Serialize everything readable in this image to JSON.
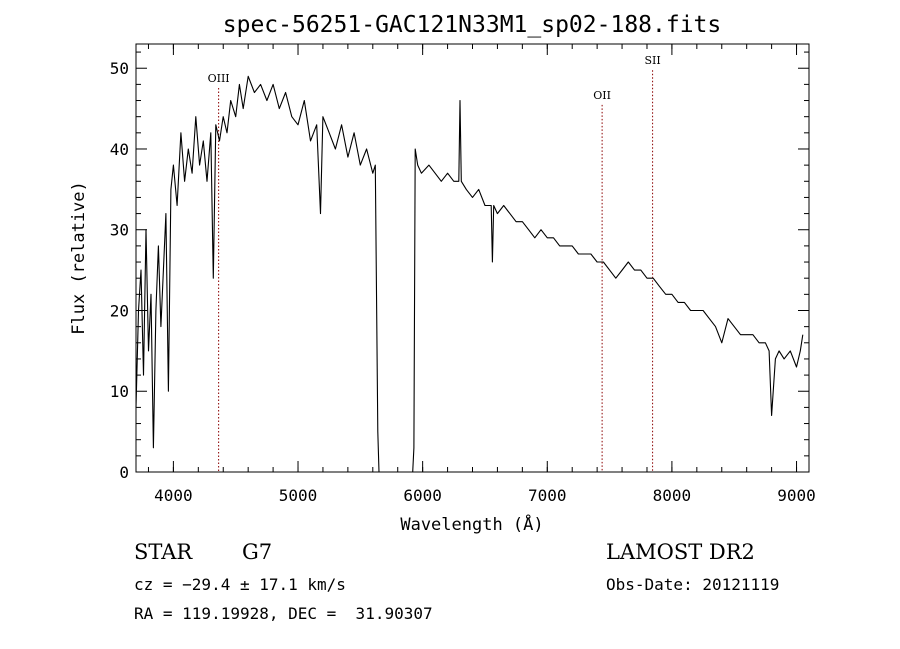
{
  "chart_data": {
    "type": "line",
    "title": "spec-56251-GAC121N33M1_sp02-188.fits",
    "xlabel": "Wavelength (Å)",
    "ylabel": "Flux (relative)",
    "xlim": [
      3700,
      9100
    ],
    "ylim": [
      0,
      53
    ],
    "xticks": [
      4000,
      5000,
      6000,
      7000,
      8000,
      9000
    ],
    "yticks": [
      0,
      10,
      20,
      30,
      40,
      50
    ],
    "xtick_labels": [
      "4000",
      "5000",
      "6000",
      "7000",
      "8000",
      "9000"
    ],
    "ytick_labels": [
      "0",
      "10",
      "20",
      "30",
      "40",
      "50"
    ],
    "grid": false,
    "line_color": "#000000",
    "marker_color": "#8b0000",
    "series": [
      {
        "x": [
          3700,
          3720,
          3740,
          3760,
          3780,
          3800,
          3820,
          3840,
          3860,
          3880,
          3900,
          3920,
          3940,
          3960,
          3980,
          4000,
          4030,
          4060,
          4090,
          4120,
          4150,
          4180,
          4210,
          4240,
          4270,
          4300,
          4320,
          4340,
          4370,
          4400,
          4430,
          4460,
          4500,
          4530,
          4560,
          4600,
          4650,
          4700,
          4750,
          4800,
          4850,
          4900,
          4950,
          5000,
          5050,
          5100,
          5150,
          5180,
          5200,
          5250,
          5300,
          5350,
          5400,
          5450,
          5500,
          5550,
          5600,
          5620,
          5640,
          5650,
          5660,
          5680,
          5700,
          5800,
          5900,
          5920,
          5930,
          5940,
          5960,
          5990,
          6050,
          6100,
          6150,
          6200,
          6250,
          6290,
          6300,
          6310,
          6350,
          6400,
          6450,
          6500,
          6550,
          6560,
          6570,
          6600,
          6650,
          6700,
          6750,
          6800,
          6850,
          6900,
          6950,
          7000,
          7050,
          7100,
          7150,
          7200,
          7250,
          7300,
          7350,
          7400,
          7450,
          7500,
          7550,
          7600,
          7650,
          7700,
          7750,
          7800,
          7850,
          7900,
          7950,
          8000,
          8050,
          8100,
          8150,
          8200,
          8250,
          8300,
          8350,
          8400,
          8450,
          8500,
          8550,
          8600,
          8650,
          8700,
          8750,
          8780,
          8800,
          8830,
          8860,
          8900,
          8950,
          9000,
          9030,
          9050
        ],
        "values": [
          8,
          20,
          25,
          12,
          30,
          15,
          22,
          3,
          20,
          28,
          18,
          25,
          32,
          10,
          35,
          38,
          33,
          42,
          36,
          40,
          37,
          44,
          38,
          41,
          36,
          42,
          24,
          43,
          41,
          44,
          42,
          46,
          44,
          48,
          45,
          49,
          47,
          48,
          46,
          48,
          45,
          47,
          44,
          43,
          46,
          41,
          43,
          32,
          44,
          42,
          40,
          43,
          39,
          42,
          38,
          40,
          37,
          38,
          5,
          0,
          0,
          0,
          0,
          0,
          0,
          0,
          3,
          40,
          38,
          37,
          38,
          37,
          36,
          37,
          36,
          36,
          46,
          36,
          35,
          34,
          35,
          33,
          33,
          26,
          33,
          32,
          33,
          32,
          31,
          31,
          30,
          29,
          30,
          29,
          29,
          28,
          28,
          28,
          27,
          27,
          27,
          26,
          26,
          25,
          24,
          25,
          26,
          25,
          25,
          24,
          24,
          23,
          22,
          22,
          21,
          21,
          20,
          20,
          20,
          19,
          18,
          16,
          19,
          18,
          17,
          17,
          17,
          16,
          16,
          15,
          7,
          14,
          15,
          14,
          15,
          13,
          15,
          17
        ]
      }
    ],
    "line_markers": [
      {
        "label": "OIII",
        "x": 4363,
        "label_y": 48.3
      },
      {
        "label": "OII",
        "x": 7440,
        "label_y": 46.2
      },
      {
        "label": "SII",
        "x": 7845,
        "label_y": 50.5
      }
    ]
  },
  "info": {
    "object_class": "STAR",
    "subclass": "G7",
    "survey": "LAMOST DR2",
    "redshift": "cz = −29.4 ± 17.1 km/s",
    "obs_date": "Obs-Date: 20121119",
    "coords": "RA = 119.19928, DEC =  31.90307"
  }
}
